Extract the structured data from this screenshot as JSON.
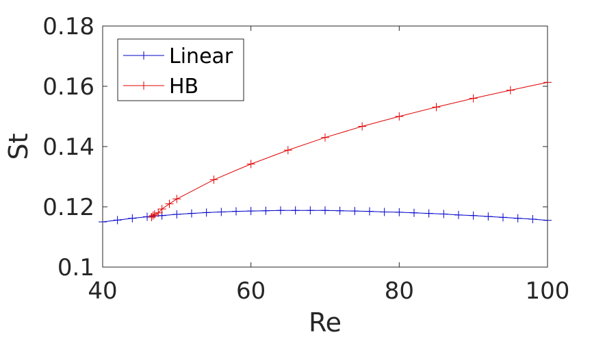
{
  "chart_data": {
    "type": "line",
    "title": "",
    "xlabel": "Re",
    "ylabel": "St",
    "xlim": [
      40,
      100
    ],
    "ylim": [
      0.1,
      0.18
    ],
    "xticks": [
      40,
      60,
      80,
      100
    ],
    "xtick_labels": [
      "40",
      "60",
      "80",
      "100"
    ],
    "yticks": [
      0.1,
      0.12,
      0.14,
      0.16,
      0.18
    ],
    "ytick_labels": [
      "0.1",
      "0.12",
      "0.14",
      "0.16",
      "0.18"
    ],
    "grid": false,
    "legend_position": "top-left",
    "series": [
      {
        "name": "Linear",
        "color": "#0000cc",
        "marker": "plus",
        "x": [
          40,
          42,
          44,
          46,
          48,
          50,
          52,
          54,
          56,
          58,
          60,
          62,
          64,
          66,
          68,
          70,
          72,
          74,
          76,
          78,
          80,
          82,
          84,
          86,
          88,
          90,
          92,
          94,
          96,
          98,
          100
        ],
        "y": [
          0.115,
          0.1156,
          0.1162,
          0.1167,
          0.1171,
          0.1175,
          0.1178,
          0.1181,
          0.1183,
          0.1185,
          0.1186,
          0.1187,
          0.1188,
          0.1188,
          0.1188,
          0.1188,
          0.1187,
          0.1186,
          0.1185,
          0.1183,
          0.1182,
          0.118,
          0.1178,
          0.1176,
          0.1173,
          0.1171,
          0.1168,
          0.1165,
          0.1162,
          0.1159,
          0.1155
        ]
      },
      {
        "name": "HB",
        "color": "#e00000",
        "marker": "plus",
        "x": [
          46.6,
          46.8,
          47,
          47.5,
          48,
          49,
          50,
          55,
          60,
          65,
          70,
          75,
          80,
          85,
          90,
          95,
          100
        ],
        "y": [
          0.1166,
          0.1171,
          0.1175,
          0.118,
          0.1193,
          0.121,
          0.1226,
          0.129,
          0.1342,
          0.1388,
          0.143,
          0.1467,
          0.15,
          0.1531,
          0.156,
          0.1587,
          0.1613
        ]
      }
    ]
  }
}
